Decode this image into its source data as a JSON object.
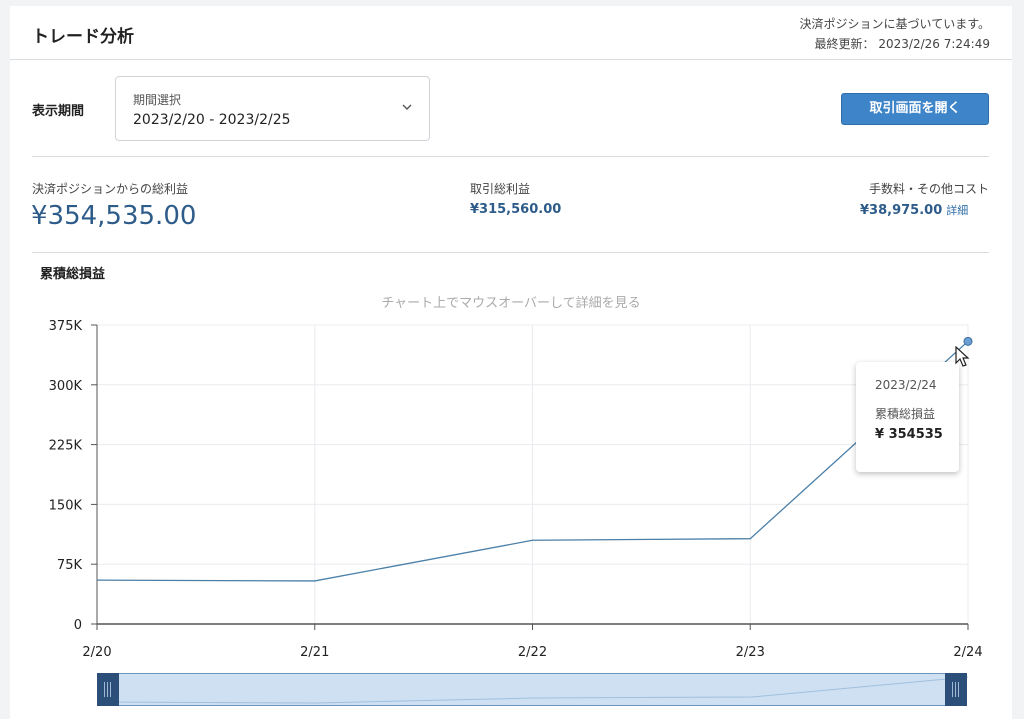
{
  "header": {
    "title": "トレード分析",
    "note": "決済ポジションに基づいています。",
    "last_updated_label": "最終更新：",
    "last_updated": "2023/2/26 7:24:49"
  },
  "period": {
    "label": "表示期間",
    "select_placeholder": "期間選択",
    "select_value": "2023/2/20 - 2023/2/25"
  },
  "actions": {
    "open_trading_label": "取引画面を開く"
  },
  "stats": {
    "total_label": "決済ポジションからの総利益",
    "total_value": "¥354,535.00",
    "gross_label": "取引総利益",
    "gross_value": "¥315,560.00",
    "fees_label": "手数料・その他コスト",
    "fees_value": "¥38,975.00",
    "fees_detail": "詳細"
  },
  "chart_section": {
    "title": "累積総損益",
    "hint": "チャート上でマウスオーバーして詳細を見る"
  },
  "tooltip": {
    "date": "2023/2/24",
    "series": "累積総損益",
    "value": "¥ 354535"
  },
  "colors": {
    "accent": "#3d84c9",
    "line": "#4a7fa8",
    "value_text": "#2e5c8a",
    "navigator": "#cfe0f2",
    "navigator_handle": "#2b4f79"
  },
  "icons": {
    "dropdown": "chevron-down-icon",
    "cursor": "mouse-pointer-icon",
    "handle_grip": "grip-icon"
  },
  "chart_data": {
    "type": "line",
    "x": [
      "2/20",
      "2/21",
      "2/22",
      "2/23",
      "2/24"
    ],
    "y_ticks": [
      "0",
      "75K",
      "150K",
      "225K",
      "300K",
      "375K"
    ],
    "ylim": [
      0,
      375000
    ],
    "grid": true,
    "series": [
      {
        "name": "累積総損益",
        "values": [
          55000,
          54000,
          105000,
          107000,
          354535
        ]
      }
    ]
  }
}
